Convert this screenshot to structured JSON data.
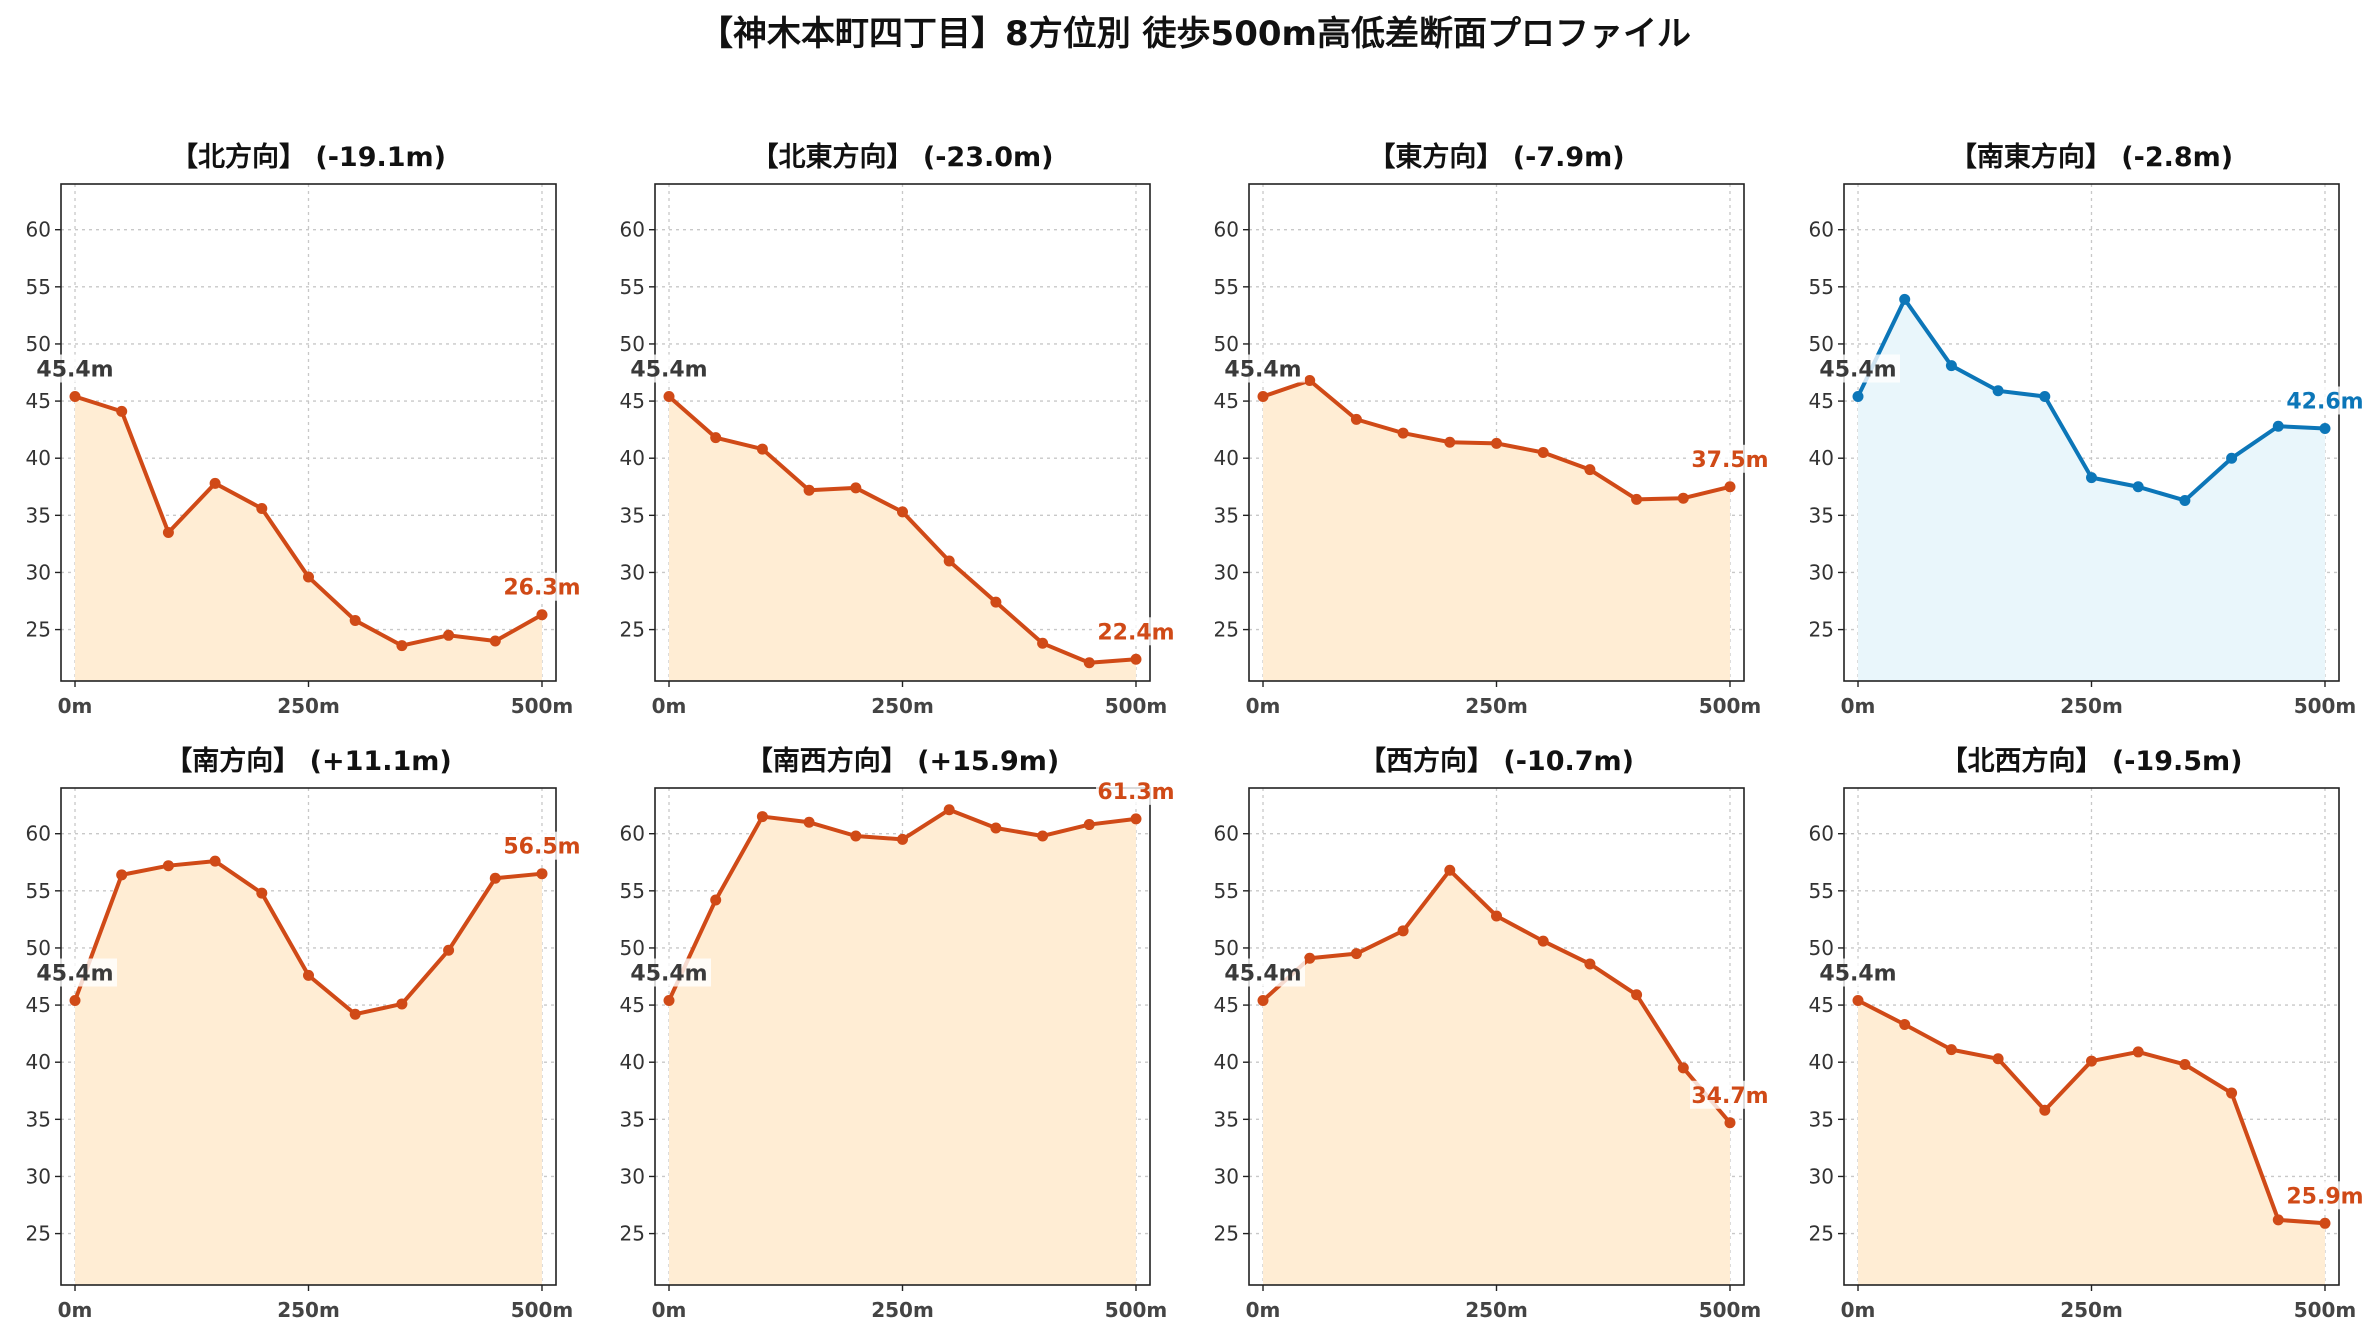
{
  "title": "【神木本町四丁目】8方位別 徒歩500m高低差断面プロファイル",
  "colors": {
    "down_line": "#d04a17",
    "down_fill": "#ffedd4",
    "up_line": "#0c76b8",
    "up_fill": "#e9f6fb",
    "start_label": "#3a3a3a"
  },
  "chart_data": [
    {
      "type": "area",
      "title": "【北方向】 (-19.1m)",
      "style": "down",
      "x": [
        0,
        50,
        100,
        150,
        200,
        250,
        300,
        350,
        400,
        450,
        500
      ],
      "y": [
        45.4,
        44.1,
        33.5,
        37.8,
        35.6,
        29.6,
        25.8,
        23.6,
        24.5,
        24.0,
        26.3
      ],
      "start_label": "45.4m",
      "end_label": "26.3m",
      "ylim": [
        20.5,
        64
      ],
      "yticks": [
        "25",
        "30",
        "35",
        "40",
        "45",
        "50",
        "55",
        "60"
      ],
      "xticks": [
        "0m",
        "250m",
        "500m"
      ],
      "grid": true
    },
    {
      "type": "area",
      "title": "【北東方向】 (-23.0m)",
      "style": "down",
      "x": [
        0,
        50,
        100,
        150,
        200,
        250,
        300,
        350,
        400,
        450,
        500
      ],
      "y": [
        45.4,
        41.8,
        40.8,
        37.2,
        37.4,
        35.3,
        31.0,
        27.4,
        23.8,
        22.1,
        22.4
      ],
      "start_label": "45.4m",
      "end_label": "22.4m",
      "ylim": [
        20.5,
        64
      ],
      "yticks": [
        "25",
        "30",
        "35",
        "40",
        "45",
        "50",
        "55",
        "60"
      ],
      "xticks": [
        "0m",
        "250m",
        "500m"
      ],
      "grid": true
    },
    {
      "type": "area",
      "title": "【東方向】 (-7.9m)",
      "style": "down",
      "x": [
        0,
        50,
        100,
        150,
        200,
        250,
        300,
        350,
        400,
        450,
        500
      ],
      "y": [
        45.4,
        46.8,
        43.4,
        42.2,
        41.4,
        41.3,
        40.5,
        39.0,
        36.4,
        36.5,
        37.5
      ],
      "start_label": "45.4m",
      "end_label": "37.5m",
      "ylim": [
        20.5,
        64
      ],
      "yticks": [
        "25",
        "30",
        "35",
        "40",
        "45",
        "50",
        "55",
        "60"
      ],
      "xticks": [
        "0m",
        "250m",
        "500m"
      ],
      "grid": true
    },
    {
      "type": "area",
      "title": "【南東方向】 (-2.8m)",
      "style": "up",
      "x": [
        0,
        50,
        100,
        150,
        200,
        250,
        300,
        350,
        400,
        450,
        500
      ],
      "y": [
        45.4,
        53.9,
        48.1,
        45.9,
        45.4,
        38.3,
        37.5,
        36.3,
        40.0,
        42.8,
        42.6
      ],
      "start_label": "45.4m",
      "end_label": "42.6m",
      "ylim": [
        20.5,
        64
      ],
      "yticks": [
        "25",
        "30",
        "35",
        "40",
        "45",
        "50",
        "55",
        "60"
      ],
      "xticks": [
        "0m",
        "250m",
        "500m"
      ],
      "grid": true
    },
    {
      "type": "area",
      "title": "【南方向】 (+11.1m)",
      "style": "down",
      "x": [
        0,
        50,
        100,
        150,
        200,
        250,
        300,
        350,
        400,
        450,
        500
      ],
      "y": [
        45.4,
        56.4,
        57.2,
        57.6,
        54.8,
        47.6,
        44.2,
        45.1,
        49.8,
        56.1,
        56.5
      ],
      "start_label": "45.4m",
      "end_label": "56.5m",
      "ylim": [
        20.5,
        64
      ],
      "yticks": [
        "25",
        "30",
        "35",
        "40",
        "45",
        "50",
        "55",
        "60"
      ],
      "xticks": [
        "0m",
        "250m",
        "500m"
      ],
      "grid": true
    },
    {
      "type": "area",
      "title": "【南西方向】 (+15.9m)",
      "style": "down",
      "x": [
        0,
        50,
        100,
        150,
        200,
        250,
        300,
        350,
        400,
        450,
        500
      ],
      "y": [
        45.4,
        54.2,
        61.5,
        61.0,
        59.8,
        59.5,
        62.1,
        60.5,
        59.8,
        60.8,
        61.3
      ],
      "start_label": "45.4m",
      "end_label": "61.3m",
      "ylim": [
        20.5,
        64
      ],
      "yticks": [
        "25",
        "30",
        "35",
        "40",
        "45",
        "50",
        "55",
        "60"
      ],
      "xticks": [
        "0m",
        "250m",
        "500m"
      ],
      "grid": true
    },
    {
      "type": "area",
      "title": "【西方向】 (-10.7m)",
      "style": "down",
      "x": [
        0,
        50,
        100,
        150,
        200,
        250,
        300,
        350,
        400,
        450,
        500
      ],
      "y": [
        45.4,
        49.1,
        49.5,
        51.5,
        56.8,
        52.8,
        50.6,
        48.6,
        45.9,
        39.5,
        34.7
      ],
      "start_label": "45.4m",
      "end_label": "34.7m",
      "ylim": [
        20.5,
        64
      ],
      "yticks": [
        "25",
        "30",
        "35",
        "40",
        "45",
        "50",
        "55",
        "60"
      ],
      "xticks": [
        "0m",
        "250m",
        "500m"
      ],
      "grid": true
    },
    {
      "type": "area",
      "title": "【北西方向】 (-19.5m)",
      "style": "down",
      "x": [
        0,
        50,
        100,
        150,
        200,
        250,
        300,
        350,
        400,
        450,
        500
      ],
      "y": [
        45.4,
        43.3,
        41.1,
        40.3,
        35.8,
        40.1,
        40.9,
        39.8,
        37.3,
        26.2,
        25.9
      ],
      "start_label": "45.4m",
      "end_label": "25.9m",
      "ylim": [
        20.5,
        64
      ],
      "yticks": [
        "25",
        "30",
        "35",
        "40",
        "45",
        "50",
        "55",
        "60"
      ],
      "xticks": [
        "0m",
        "250m",
        "500m"
      ],
      "grid": true
    }
  ]
}
